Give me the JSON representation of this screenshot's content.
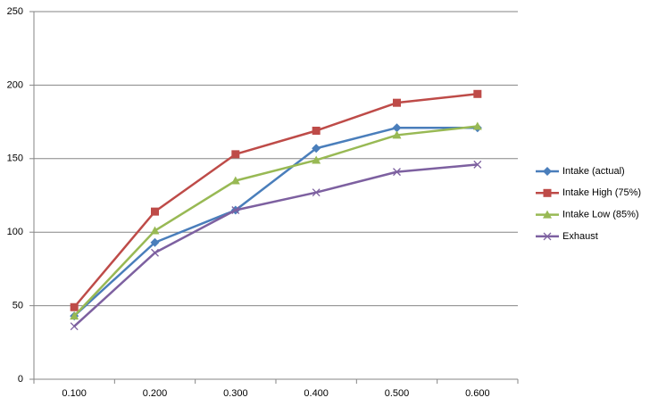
{
  "chart_data": {
    "type": "line",
    "categories": [
      "0.100",
      "0.200",
      "0.300",
      "0.400",
      "0.500",
      "0.600"
    ],
    "series": [
      {
        "name": "Intake (actual)",
        "color": "#4a7ebb",
        "marker": "diamond",
        "values": [
          43,
          93,
          115,
          157,
          171,
          171
        ]
      },
      {
        "name": "Intake High (75%)",
        "color": "#be4b48",
        "marker": "square",
        "values": [
          49,
          114,
          153,
          169,
          188,
          194
        ]
      },
      {
        "name": "Intake Low (85%)",
        "color": "#98b954",
        "marker": "triangle",
        "values": [
          43,
          101,
          135,
          149,
          166,
          172
        ]
      },
      {
        "name": "Exhaust",
        "color": "#7d60a0",
        "marker": "x",
        "values": [
          36,
          86,
          115,
          127,
          141,
          146
        ]
      }
    ],
    "ylim": [
      0,
      250
    ],
    "yticks": [
      0,
      50,
      100,
      150,
      200,
      250
    ],
    "grid": true,
    "legend": "right"
  }
}
